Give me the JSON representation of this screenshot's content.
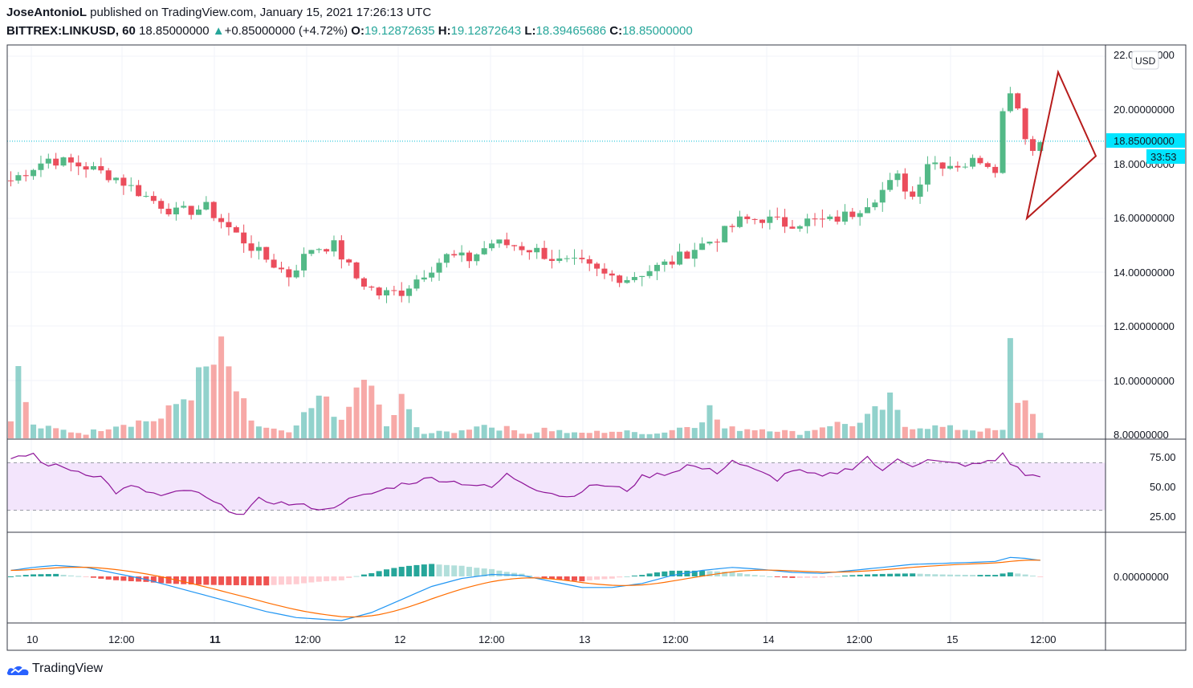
{
  "header": {
    "author": "JoseAntonioL",
    "published_text": " published on TradingView.com, January 15, 2021 17:26:13 UTC",
    "symbol": "BITTREX:LINKUSD, 60",
    "last": "18.85000000",
    "arrow": "▲",
    "change": "+0.85000000 (+4.72%)",
    "o_label": "O:",
    "o_value": "19.12872635",
    "h_label": "H:",
    "h_value": "19.12872643",
    "l_label": "L:",
    "l_value": "18.39465686",
    "c_label": "C:",
    "c_value": "18.85000000"
  },
  "price_axis": {
    "currency": "USD",
    "labels": [
      "22.00000000",
      "20.00000000",
      "18.00000000",
      "16.00000000",
      "14.00000000",
      "12.00000000",
      "10.00000000",
      "8.00000000"
    ],
    "last_price_label": "18.85000000",
    "countdown": "33:53"
  },
  "rsi_axis": {
    "labels": [
      "75.00",
      "50.00",
      "25.00"
    ]
  },
  "macd_axis": {
    "labels": [
      "0.00000000"
    ]
  },
  "time_axis": {
    "labels": [
      "10",
      "12:00",
      "11",
      "12:00",
      "12",
      "12:00",
      "13",
      "12:00",
      "14",
      "12:00",
      "15",
      "12:00"
    ]
  },
  "brand": {
    "name": "TradingView"
  },
  "colors": {
    "up": "#26a69a",
    "down": "#ef5350",
    "up_candle": "#53b987",
    "down_candle": "#eb4d5c",
    "rsi_line": "#8e1599",
    "rsi_band": "#f3e5fc",
    "macd_line": "#2196f3",
    "signal_line": "#ff6d00",
    "last_price_bg": "#00e5ff",
    "drawing": "#b71c1c"
  },
  "chart_data": {
    "type": "candlestick",
    "symbol": "BITTREX:LINKUSD",
    "interval": "60",
    "ylim": [
      8,
      22
    ],
    "x": [
      "10",
      "12:00",
      "11",
      "12:00",
      "12",
      "12:00",
      "13",
      "12:00",
      "14",
      "12:00",
      "15",
      "12:00"
    ],
    "price_anchors": [
      [
        0,
        17.4
      ],
      [
        3,
        17.9
      ],
      [
        5,
        18.2
      ],
      [
        10,
        17.9
      ],
      [
        14,
        17.5
      ],
      [
        18,
        16.8
      ],
      [
        22,
        16.2
      ],
      [
        26,
        16.4
      ],
      [
        30,
        15.4
      ],
      [
        34,
        14.5
      ],
      [
        37,
        13.9
      ],
      [
        40,
        14.9
      ],
      [
        43,
        15.0
      ],
      [
        46,
        13.8
      ],
      [
        49,
        13.2
      ],
      [
        52,
        13.3
      ],
      [
        55,
        14.0
      ],
      [
        58,
        14.6
      ],
      [
        61,
        14.5
      ],
      [
        64,
        15.1
      ],
      [
        67,
        15.0
      ],
      [
        70,
        14.8
      ],
      [
        73,
        14.4
      ],
      [
        76,
        14.3
      ],
      [
        79,
        13.9
      ],
      [
        82,
        13.8
      ],
      [
        85,
        14.1
      ],
      [
        88,
        14.4
      ],
      [
        91,
        14.9
      ],
      [
        94,
        15.3
      ],
      [
        97,
        15.9
      ],
      [
        100,
        16.0
      ],
      [
        103,
        15.8
      ],
      [
        106,
        15.9
      ],
      [
        109,
        15.9
      ],
      [
        112,
        16.2
      ],
      [
        115,
        16.8
      ],
      [
        118,
        17.5
      ],
      [
        120,
        16.8
      ],
      [
        122,
        18.1
      ],
      [
        125,
        18.0
      ],
      [
        127,
        18.0
      ],
      [
        129,
        18.2
      ],
      [
        131,
        17.9
      ],
      [
        132,
        19.9
      ],
      [
        133,
        20.8
      ],
      [
        134,
        20.1
      ],
      [
        135,
        19.1
      ],
      [
        136,
        18.5
      ],
      [
        137,
        18.85
      ]
    ],
    "volume_anchors": [
      [
        0,
        1.0
      ],
      [
        1,
        2.6
      ],
      [
        3,
        0.5
      ],
      [
        10,
        0.2
      ],
      [
        14,
        0.6
      ],
      [
        20,
        0.8
      ],
      [
        23,
        1.7
      ],
      [
        28,
        3.4
      ],
      [
        32,
        0.6
      ],
      [
        37,
        0.2
      ],
      [
        42,
        1.8
      ],
      [
        44,
        0.6
      ],
      [
        47,
        2.6
      ],
      [
        50,
        0.5
      ],
      [
        52,
        1.5
      ],
      [
        55,
        0.2
      ],
      [
        60,
        0.3
      ],
      [
        62,
        0.6
      ],
      [
        66,
        0.4
      ],
      [
        69,
        0.2
      ],
      [
        71,
        0.4
      ],
      [
        75,
        0.2
      ],
      [
        80,
        0.3
      ],
      [
        86,
        0.2
      ],
      [
        91,
        0.6
      ],
      [
        93,
        1.2
      ],
      [
        95,
        0.4
      ],
      [
        101,
        0.4
      ],
      [
        105,
        0.2
      ],
      [
        109,
        0.6
      ],
      [
        113,
        0.6
      ],
      [
        117,
        1.5
      ],
      [
        119,
        0.5
      ],
      [
        122,
        0.5
      ],
      [
        126,
        0.4
      ],
      [
        132,
        0.3
      ],
      [
        133,
        3.7
      ],
      [
        134,
        1.7
      ],
      [
        136,
        1.3
      ],
      [
        137,
        0.2
      ]
    ],
    "rsi_anchors": [
      [
        0,
        72
      ],
      [
        3,
        78
      ],
      [
        4,
        70
      ],
      [
        7,
        66
      ],
      [
        12,
        58
      ],
      [
        14,
        45
      ],
      [
        16,
        50
      ],
      [
        20,
        42
      ],
      [
        24,
        47
      ],
      [
        28,
        33
      ],
      [
        31,
        26
      ],
      [
        33,
        39
      ],
      [
        36,
        36
      ],
      [
        40,
        33
      ],
      [
        42,
        30
      ],
      [
        44,
        37
      ],
      [
        48,
        44
      ],
      [
        52,
        52
      ],
      [
        56,
        57
      ],
      [
        60,
        53
      ],
      [
        64,
        49
      ],
      [
        66,
        60
      ],
      [
        70,
        48
      ],
      [
        74,
        41
      ],
      [
        78,
        52
      ],
      [
        82,
        47
      ],
      [
        84,
        58
      ],
      [
        88,
        62
      ],
      [
        90,
        68
      ],
      [
        94,
        62
      ],
      [
        96,
        72
      ],
      [
        98,
        66
      ],
      [
        102,
        56
      ],
      [
        104,
        64
      ],
      [
        108,
        58
      ],
      [
        112,
        66
      ],
      [
        114,
        75
      ],
      [
        116,
        62
      ],
      [
        118,
        74
      ],
      [
        120,
        68
      ],
      [
        122,
        72
      ],
      [
        124,
        70
      ],
      [
        128,
        68
      ],
      [
        131,
        72
      ],
      [
        132,
        78
      ],
      [
        133,
        70
      ],
      [
        135,
        60
      ],
      [
        137,
        58
      ]
    ],
    "rsi_band": [
      30,
      70
    ],
    "macd_anchors": [
      [
        0,
        0.3
      ],
      [
        3,
        0.45
      ],
      [
        6,
        0.55
      ],
      [
        10,
        0.45
      ],
      [
        14,
        0.15
      ],
      [
        18,
        -0.15
      ],
      [
        22,
        -0.55
      ],
      [
        26,
        -0.95
      ],
      [
        30,
        -1.35
      ],
      [
        34,
        -1.75
      ],
      [
        38,
        -2.05
      ],
      [
        42,
        -2.15
      ],
      [
        44,
        -2.2
      ],
      [
        48,
        -1.8
      ],
      [
        52,
        -1.15
      ],
      [
        56,
        -0.5
      ],
      [
        60,
        -0.1
      ],
      [
        64,
        0.1
      ],
      [
        68,
        0.05
      ],
      [
        72,
        -0.25
      ],
      [
        76,
        -0.55
      ],
      [
        80,
        -0.55
      ],
      [
        84,
        -0.35
      ],
      [
        88,
        0.05
      ],
      [
        92,
        0.3
      ],
      [
        96,
        0.45
      ],
      [
        100,
        0.35
      ],
      [
        104,
        0.2
      ],
      [
        108,
        0.15
      ],
      [
        112,
        0.3
      ],
      [
        116,
        0.45
      ],
      [
        120,
        0.6
      ],
      [
        124,
        0.65
      ],
      [
        128,
        0.7
      ],
      [
        131,
        0.75
      ],
      [
        133,
        0.95
      ],
      [
        135,
        0.9
      ],
      [
        137,
        0.8
      ]
    ],
    "triangle_drawing": [
      [
        20.5,
        16.0
      ],
      [
        21.3,
        18.3
      ]
    ]
  }
}
